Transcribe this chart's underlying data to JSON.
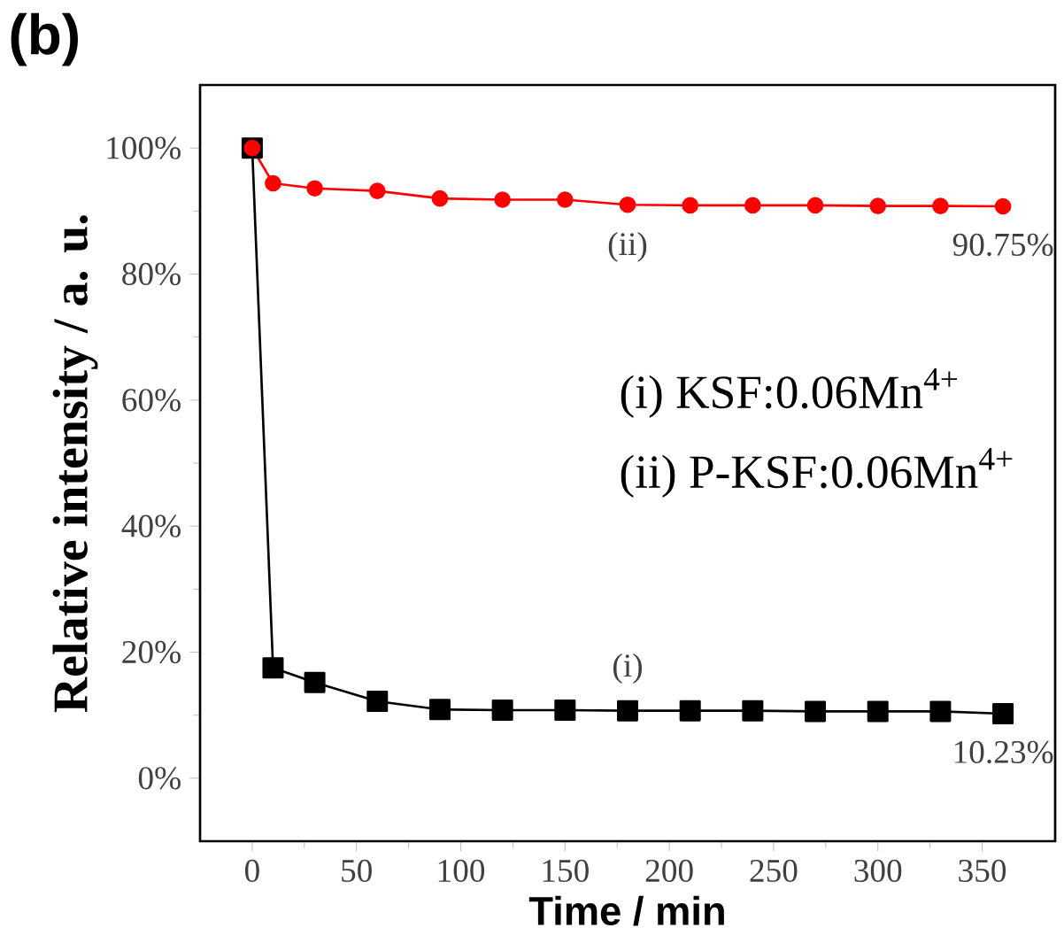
{
  "chart_data": {
    "type": "line",
    "xlabel": "Time / min",
    "ylabel": "Relative intensity / a. u.",
    "annotations": [
      "(b)",
      "(i) KSF:0.06Mn$^{4+}$",
      "(ii) P-KSF:0.06Mn$^{4+}$",
      {
        "text": "90.75%",
        "x": 360,
        "y": 90.75
      },
      {
        "text": "10.23%",
        "x": 360,
        "y": 10.23
      }
    ],
    "xlim": [
      -25,
      385
    ],
    "ylim": [
      -10,
      110
    ],
    "xticks": [
      0,
      50,
      100,
      150,
      200,
      250,
      300,
      350
    ],
    "yticks": [
      {
        "value": 0,
        "label": "0%"
      },
      {
        "value": 20,
        "label": "20%"
      },
      {
        "value": 40,
        "label": "40%"
      },
      {
        "value": 60,
        "label": "60%"
      },
      {
        "value": 80,
        "label": "80%"
      },
      {
        "value": 100,
        "label": "100%"
      }
    ],
    "grid": false,
    "line_style": "solid",
    "x": [
      0,
      10,
      30,
      60,
      90,
      120,
      150,
      180,
      210,
      240,
      270,
      300,
      330,
      360
    ],
    "series": [
      {
        "name": "(i)",
        "color": "#000000",
        "marker": "square",
        "values": [
          100,
          17.5,
          15.2,
          12.2,
          10.9,
          10.8,
          10.8,
          10.7,
          10.7,
          10.7,
          10.6,
          10.6,
          10.6,
          10.23
        ]
      },
      {
        "name": "(ii)",
        "color": "#ff0000",
        "marker": "circle",
        "values": [
          100,
          94.4,
          93.6,
          93.2,
          92.0,
          91.8,
          91.8,
          91.0,
          90.9,
          90.9,
          90.9,
          90.8,
          90.8,
          90.75
        ]
      }
    ]
  }
}
